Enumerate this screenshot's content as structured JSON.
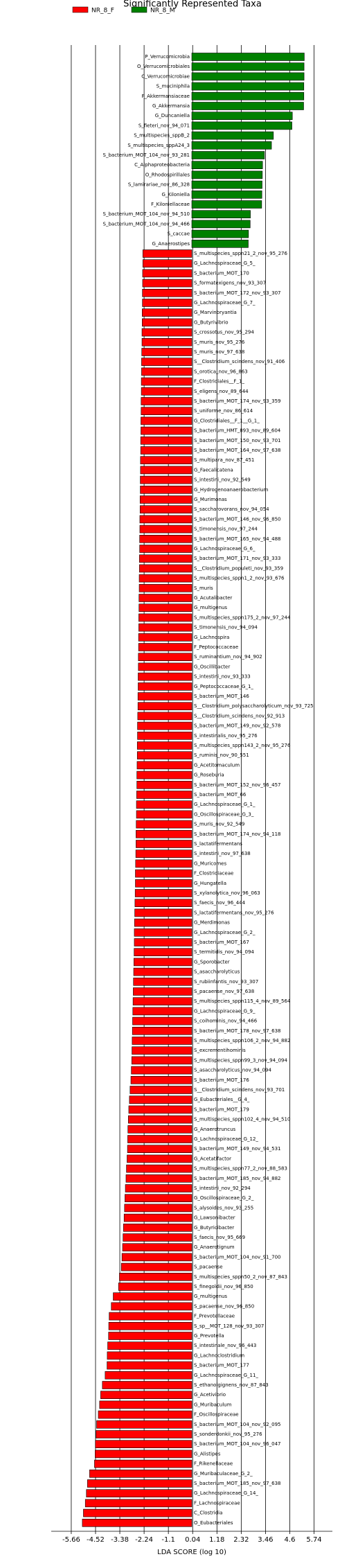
{
  "chart_data": {
    "type": "bar",
    "orientation": "horizontal",
    "title": "Significantly Represented Taxa",
    "xlabel": "LDA SCORE (log 10)",
    "xlim": [
      -6.6,
      6.6
    ],
    "xticks": [
      -5.66,
      -4.52,
      -3.38,
      -2.24,
      -1.1,
      0.04,
      1.18,
      2.32,
      3.46,
      4.6,
      5.74
    ],
    "grid": true,
    "legend": "top-left",
    "categories": [
      "P_Verrucomicrobia",
      "O_Verrucomicrobiales",
      "C_Verrucomicrobiae",
      "S_muciniphila",
      "F_Akkermansiaceae",
      "G_Akkermansia",
      "G_Duncaniella",
      "S_fieteri_nov_94_071",
      "S_multispecies_sppB_2",
      "S_multispecies_sppA24_3",
      "S_bacterium_MOT_104_nov_93_281",
      "C_Alphaproteobacteria",
      "O_Rhodospirillales",
      "S_lamirariae_nov_86_328",
      "G_Kiloniella",
      "F_Kiloniellaceae",
      "S_bacterium_MOT_104_nov_94_510",
      "S_bacterium_MOT_104_nov_94_466",
      "S_caccae",
      "G_Anaerostipes",
      "S_multispecies_sppn21_2_nov_95_276",
      "G_Lachnospiraceae_G_5_",
      "S_bacterium_MOT_170",
      "S_formatexigens_nov_93_307",
      "S_bacterium_MOT_172_nov_93_307",
      "G_Lachnospiraceae_G_7_",
      "G_Marvinbryantia",
      "G_Butyrivibrio",
      "S_crossotus_nov_95_294",
      "S_muris_nov_95_276",
      "S_muris_nov_97_638",
      "S__Clostridium_scindens_nov_91_406",
      "S_orotica_nov_96_863",
      "F_Clostridiales__F_1_",
      "S_eligens_nov_89_644",
      "S_bacterium_MOT_174_nov_93_359",
      "S_uniforme_nov_86_614",
      "G_Clostridiales__F_1__G_1_",
      "S_bacterium_HMT_893_nov_89_604",
      "S_bacterium_MOT_150_nov_93_701",
      "S_bacterium_MOT_164_nov_97_638",
      "S_multipara_nov_87_451",
      "G_Faecalicatena",
      "S_intestini_nov_92_549",
      "G_Hydrogenoanaerobacterium",
      "G_Murimonas",
      "S_saccharovorans_nov_94_054",
      "S_bacterium_MOT_146_nov_96_850",
      "S_timonensis_nov_97_244",
      "S_bacterium_MOT_165_nov_94_488",
      "G_Lachnospiraceae_G_6_",
      "S_bacterium_MOT_171_nov_93_333",
      "S__Clostridium_populeti_nov_93_359",
      "S_multispecies_sppn1_2_nov_93_676",
      "S_muris",
      "G_Acutalibacter",
      "G_multigenus",
      "S_multispecies_sppn175_2_nov_97_244",
      "S_timonensis_nov_94_094",
      "G_Lachnospira",
      "F_Peptococcaceae",
      "S_ruminantium_nov_94_902",
      "G_Oscillibacter",
      "S_intestini_nov_93_333",
      "G_Peptococcaceae_G_1_",
      "S_bacterium_MOT_146",
      "S__Clostridium_polysaccharolyticum_nov_93_725",
      "S__Clostridium_scindens_nov_92_913",
      "S_bacterium_MOT_149_nov_92_578",
      "S_intestinalis_nov_95_276",
      "S_multispecies_sppn143_2_nov_95_276",
      "S_ruminis_nov_90_551",
      "G_Acetitomaculum",
      "G_Roseburia",
      "S_bacterium_MOT_152_nov_96_457",
      "S_bacterium_MOT_66",
      "G_Lachnospiraceae_G_1_",
      "G_Oscillospiraceae_G_3_",
      "S_muris_nov_92_549",
      "S_bacterium_MOT_174_nov_94_118",
      "S_lactatifermentans",
      "S_intestini_nov_97_638",
      "G_Muricomes",
      "F_Clostridiaceae",
      "G_Hungatella",
      "S_xylanolytica_nov_96_063",
      "S_faecis_nov_96_444",
      "S_lactatifermentans_nov_95_276",
      "G_Merdimonas",
      "G_Lachnospiraceae_G_2_",
      "S_bacterium_MOT_167",
      "S_termitidis_nov_94_094",
      "G_Sporobacter",
      "S_asaccharolyticus",
      "S_rubiinfantis_nov_93_307",
      "S_pacaense_nov_97_638",
      "S_multispecies_sppn115_4_nov_89_564",
      "G_Lachnospiraceae_G_9_",
      "S_coihominis_nov_94_466",
      "S_bacterium_MOT_178_nov_97_638",
      "S_multispecies_sppn106_2_nov_94_882",
      "S_excrementihominis",
      "S_multispecies_sppn99_3_nov_94_094",
      "S_asaccharolyticus_nov_94_094",
      "S_bacterium_MOT_176",
      "S__Clostridium_scindens_nov_93_701",
      "G_Eubacteriales__G_4_",
      "S_bacterium_MOT_179",
      "S_multispecies_sppn102_4_nov_94_510",
      "G_Anaerotruncus",
      "G_Lachnospiraceae_G_12_",
      "S_bacterium_MOT_149_nov_94_531",
      "G_Acetatifactor",
      "S_multispecies_sppn77_2_nov_88_583",
      "S_bacterium_MOT_185_nov_94_882",
      "S_intestini_nov_92_294",
      "G_Oscillospiraceae_G_2_",
      "S_alysoides_nov_93_255",
      "G_Lawsonibacter",
      "G_Butyricibacter",
      "S_faecis_nov_95_669",
      "G_Anaerotignum",
      "S_bacterium_MOT_104_nov_91_700",
      "S_pacaense",
      "S_multispecies_sppn50_2_nov_87_843",
      "S_finegoldii_nov_96_850",
      "G_multigenus",
      "S_pacaense_nov_96_850",
      "F_Prevotellaceae",
      "S_sp__MOT_128_nov_93_307",
      "G_Prevotella",
      "S_intestinale_nov_96_443",
      "G_Lachnoclostridium",
      "S_bacterium_MOT_177",
      "G_Lachnospiraceae_G_11_",
      "S_ethanolgignens_nov_87_843",
      "G_Acetivibrio",
      "G_Muribaculum",
      "F_Oscillospiraceae",
      "S_bacterium_MOT_104_nov_92_095",
      "S_sonderdonkii_nov_95_276",
      "S_bacterium_MOT_104_nov_96_047",
      "G_Alistipes",
      "F_Rikenellaceae",
      "G_Muribaculaceae_G_2_",
      "S_bacterium_MOT_185_nov_97_638",
      "G_Lachnospiraceae_G_14_",
      "F_Lachnospiraceae",
      "C_Clostridia",
      "O_Eubacteriales"
    ],
    "series": [
      {
        "name": "NR_8_F",
        "color": "#ff0000",
        "values": [
          null,
          null,
          null,
          null,
          null,
          null,
          null,
          null,
          null,
          null,
          null,
          null,
          null,
          null,
          null,
          null,
          null,
          null,
          null,
          null,
          -2.3,
          -2.3,
          -2.31,
          -2.31,
          -2.32,
          -2.32,
          -2.33,
          -2.33,
          -2.34,
          -2.34,
          -2.35,
          -2.36,
          -2.36,
          -2.37,
          -2.37,
          -2.38,
          -2.38,
          -2.39,
          -2.39,
          -2.4,
          -2.4,
          -2.41,
          -2.41,
          -2.42,
          -2.42,
          -2.43,
          -2.43,
          -2.44,
          -2.44,
          -2.45,
          -2.45,
          -2.46,
          -2.46,
          -2.47,
          -2.47,
          -2.48,
          -2.48,
          -2.49,
          -2.49,
          -2.5,
          -2.5,
          -2.51,
          -2.51,
          -2.52,
          -2.52,
          -2.53,
          -2.53,
          -2.54,
          -2.55,
          -2.55,
          -2.56,
          -2.56,
          -2.57,
          -2.58,
          -2.58,
          -2.59,
          -2.6,
          -2.6,
          -2.61,
          -2.62,
          -2.62,
          -2.63,
          -2.64,
          -2.65,
          -2.65,
          -2.66,
          -2.67,
          -2.68,
          -2.69,
          -2.7,
          -2.7,
          -2.71,
          -2.72,
          -2.73,
          -2.74,
          -2.75,
          -2.76,
          -2.77,
          -2.78,
          -2.79,
          -2.8,
          -2.81,
          -2.82,
          -2.84,
          -2.86,
          -2.9,
          -2.93,
          -2.96,
          -2.98,
          -3.0,
          -3.01,
          -3.02,
          -3.04,
          -3.07,
          -3.09,
          -3.12,
          -3.14,
          -3.16,
          -3.18,
          -3.21,
          -3.23,
          -3.25,
          -3.28,
          -3.31,
          -3.4,
          -3.44,
          -3.69,
          -3.78,
          -3.88,
          -3.9,
          -3.91,
          -3.95,
          -3.97,
          -3.98,
          -4.07,
          -4.2,
          -4.28,
          -4.33,
          -4.39,
          -4.47,
          -4.5,
          -4.53,
          -4.54,
          -4.57,
          -4.8,
          -4.9,
          -4.95,
          -5.0,
          -5.09,
          -5.14
        ]
      },
      {
        "name": "NR_8_M",
        "color": "#008000",
        "values": [
          5.28,
          5.27,
          5.27,
          5.26,
          5.26,
          5.25,
          4.72,
          4.7,
          3.83,
          3.74,
          3.41,
          3.32,
          3.31,
          3.3,
          3.29,
          3.28,
          2.75,
          2.74,
          2.66,
          2.65,
          null,
          null,
          null,
          null,
          null,
          null,
          null,
          null,
          null,
          null,
          null,
          null,
          null,
          null,
          null,
          null,
          null,
          null,
          null,
          null,
          null,
          null,
          null,
          null,
          null,
          null,
          null,
          null,
          null,
          null,
          null,
          null,
          null,
          null,
          null,
          null,
          null,
          null,
          null,
          null,
          null,
          null,
          null,
          null,
          null,
          null,
          null,
          null,
          null,
          null,
          null,
          null,
          null,
          null,
          null,
          null,
          null,
          null,
          null,
          null,
          null,
          null,
          null,
          null,
          null,
          null,
          null,
          null,
          null,
          null,
          null,
          null,
          null,
          null,
          null,
          null,
          null,
          null,
          null,
          null,
          null,
          null,
          null,
          null,
          null,
          null,
          null,
          null,
          null,
          null,
          null,
          null,
          null,
          null,
          null,
          null,
          null,
          null,
          null,
          null,
          null,
          null,
          null,
          null,
          null,
          null,
          null,
          null,
          null,
          null,
          null,
          null,
          null,
          null,
          null,
          null,
          null,
          null,
          null,
          null,
          null,
          null,
          null,
          null,
          null,
          null,
          null,
          null,
          null,
          null
        ]
      }
    ]
  }
}
